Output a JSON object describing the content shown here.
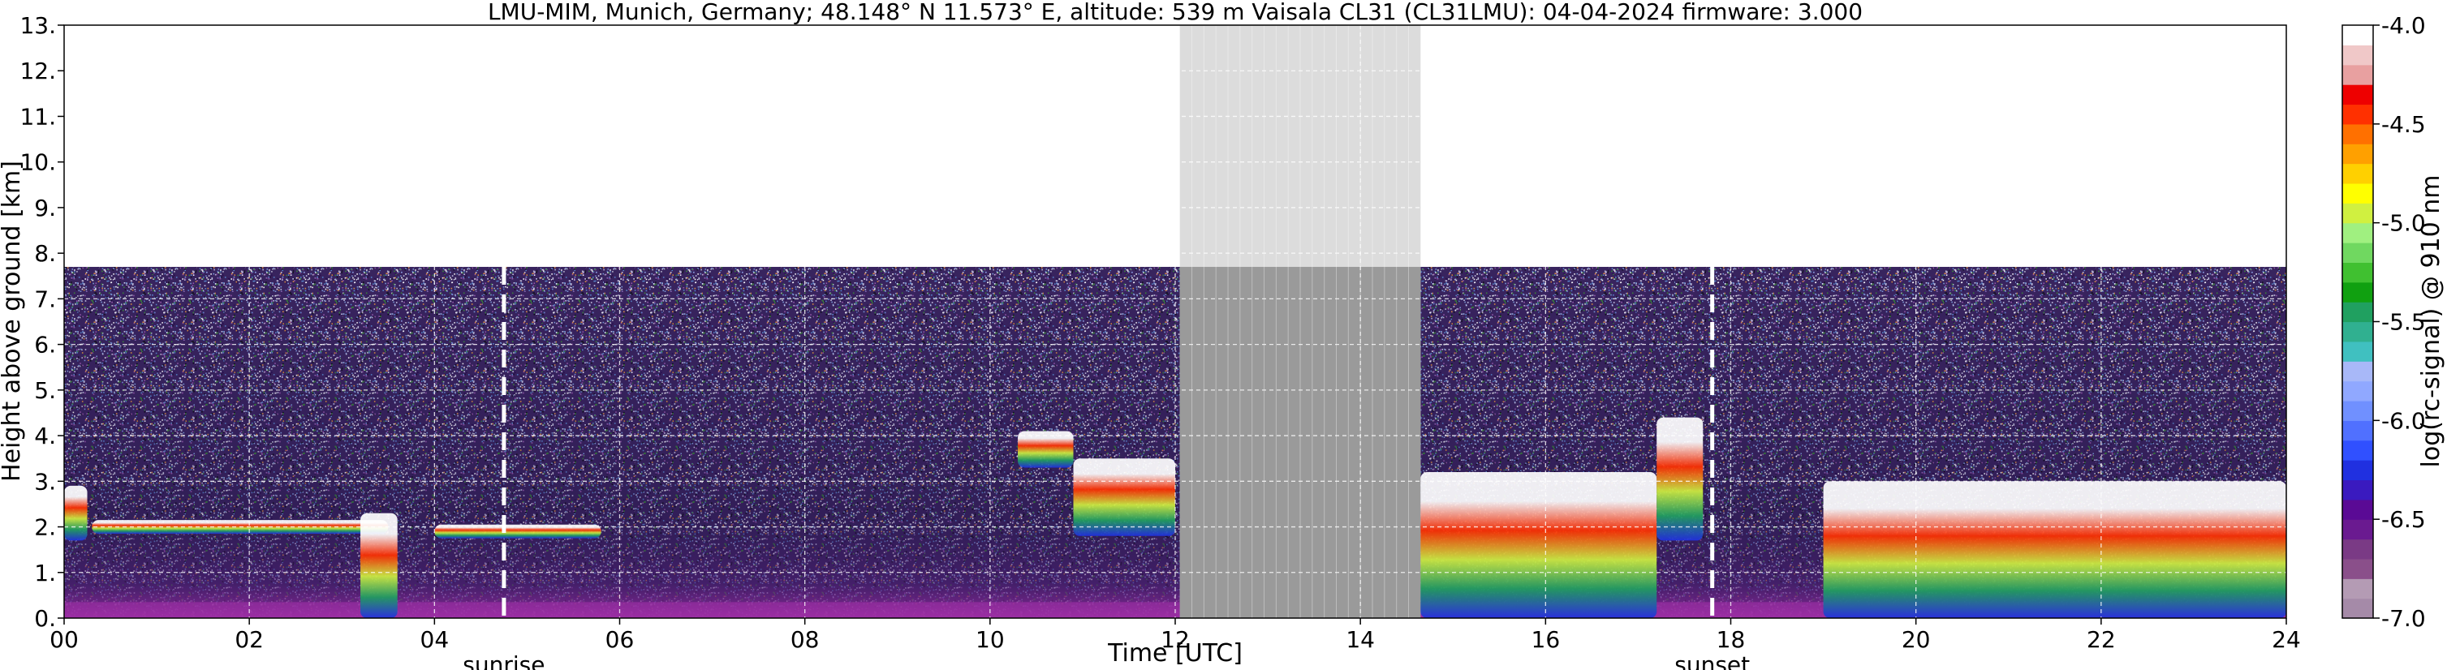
{
  "chart_data": {
    "type": "heatmap",
    "title": "LMU-MIM, Munich, Germany; 48.148° N 11.573° E, altitude: 539 m    Vaisala CL31 (CL31LMU): 04-04-2024    firmware: 3.000",
    "xlabel": "Time [UTC]",
    "ylabel": "Height above ground [km]",
    "xlim": [
      0,
      24
    ],
    "ylim": [
      0,
      13
    ],
    "x_ticks": [
      "00",
      "02",
      "04",
      "06",
      "08",
      "10",
      "12",
      "14",
      "16",
      "18",
      "20",
      "22",
      "24"
    ],
    "y_ticks": [
      "0.",
      "1.",
      "2.",
      "3.",
      "4.",
      "5.",
      "6.",
      "7.",
      "8.",
      "9.",
      "10.",
      "11.",
      "12.",
      "13."
    ],
    "grid": true,
    "measurement_top_km": 7.7,
    "data_gap": [
      12.05,
      14.65
    ],
    "day_markers": [
      {
        "label": "sunrise",
        "time": 4.75
      },
      {
        "label": "sunset",
        "time": 17.8
      }
    ],
    "cloud_layers": [
      {
        "start": 0.0,
        "end": 0.25,
        "base_km": 1.7,
        "top_km": 2.9
      },
      {
        "start": 0.3,
        "end": 3.5,
        "base_km": 1.85,
        "top_km": 2.15
      },
      {
        "start": 3.2,
        "end": 3.6,
        "base_km": 0.0,
        "top_km": 2.3
      },
      {
        "start": 4.0,
        "end": 5.8,
        "base_km": 1.75,
        "top_km": 2.05
      },
      {
        "start": 10.3,
        "end": 10.9,
        "base_km": 3.3,
        "top_km": 4.1
      },
      {
        "start": 10.9,
        "end": 12.0,
        "base_km": 1.8,
        "top_km": 3.5
      },
      {
        "start": 14.65,
        "end": 17.2,
        "base_km": 0.0,
        "top_km": 3.2
      },
      {
        "start": 17.2,
        "end": 17.7,
        "base_km": 1.7,
        "top_km": 4.4
      },
      {
        "start": 19.0,
        "end": 24.0,
        "base_km": 0.0,
        "top_km": 3.0
      }
    ],
    "colorbar": {
      "label": "log(rc-signal) @ 910 nm",
      "ticks": [
        "-4.0",
        "-4.5",
        "-5.0",
        "-5.5",
        "-6.0",
        "-6.5",
        "-7.0"
      ],
      "range": [
        -7.0,
        -4.0
      ],
      "colors": [
        "#a58aa8",
        "#b49bb4",
        "#8a4f8a",
        "#7a3a85",
        "#6a1a90",
        "#5a0a95",
        "#3a1abf",
        "#2030e0",
        "#3050ff",
        "#5070ff",
        "#7090ff",
        "#90a8ff",
        "#a8b8f8",
        "#40c0c0",
        "#30b090",
        "#20a060",
        "#10a010",
        "#40c030",
        "#70d860",
        "#a0f080",
        "#d0f040",
        "#ffff00",
        "#ffd000",
        "#ffa000",
        "#ff7000",
        "#ff3000",
        "#ee0000",
        "#e8a0a0",
        "#f0c8c8",
        "#ffffff"
      ]
    }
  }
}
